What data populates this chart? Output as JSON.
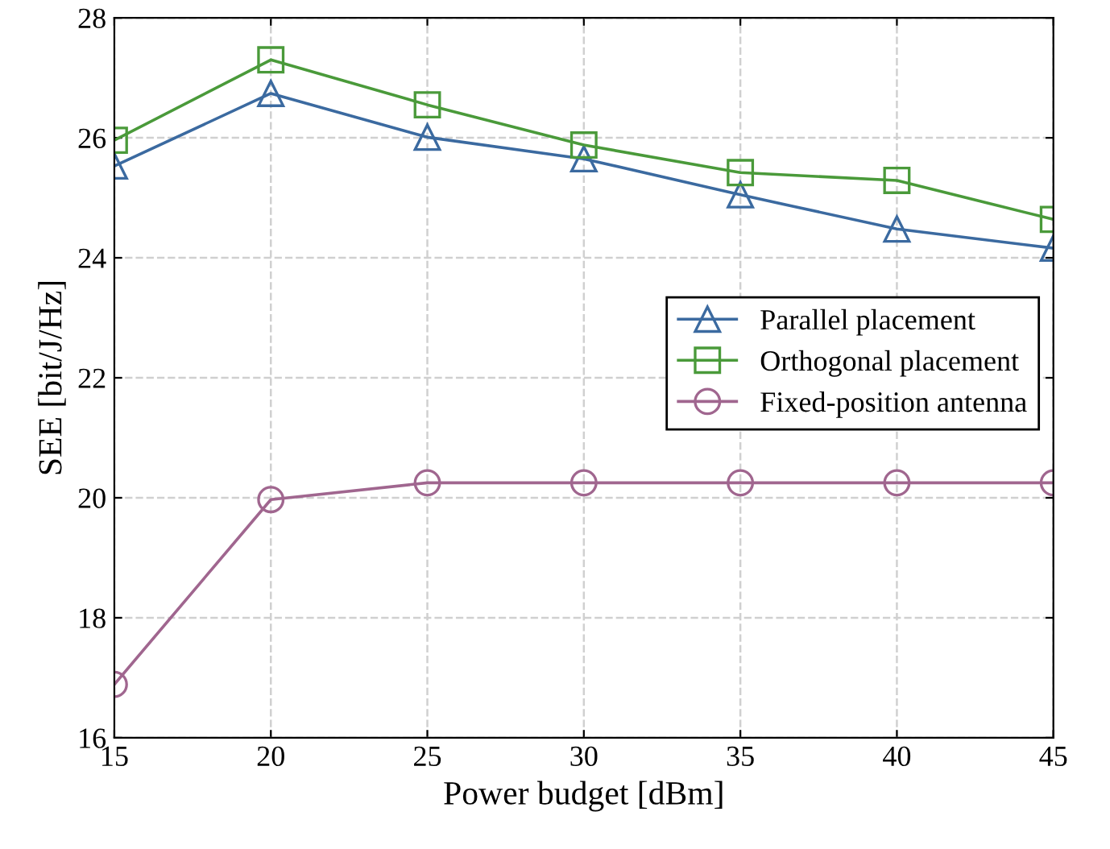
{
  "chart_data": {
    "type": "line",
    "xlabel": "Power budget [dBm]",
    "ylabel": "SEE [bit/J/Hz]",
    "x": [
      15,
      20,
      25,
      30,
      35,
      40,
      45
    ],
    "series": [
      {
        "name": "Parallel placement",
        "color": "#3b6aa0",
        "marker": "triangle",
        "values": [
          25.53,
          26.74,
          26.01,
          25.65,
          25.05,
          24.48,
          24.16
        ]
      },
      {
        "name": "Orthogonal placement",
        "color": "#4a9a3a",
        "marker": "square",
        "values": [
          25.96,
          27.3,
          26.55,
          25.88,
          25.42,
          25.29,
          24.64
        ]
      },
      {
        "name": "Fixed-position antenna",
        "color": "#a0668f",
        "marker": "circle",
        "values": [
          16.89,
          19.97,
          20.25,
          20.25,
          20.25,
          20.25,
          20.25
        ]
      }
    ],
    "xlim": [
      15,
      45
    ],
    "xticks": [
      15,
      20,
      25,
      30,
      35,
      40,
      45
    ],
    "ylim": [
      16,
      28
    ],
    "yticks": [
      16,
      18,
      20,
      22,
      24,
      26,
      28
    ],
    "grid": true,
    "legend": "right",
    "line_style": "solid"
  }
}
